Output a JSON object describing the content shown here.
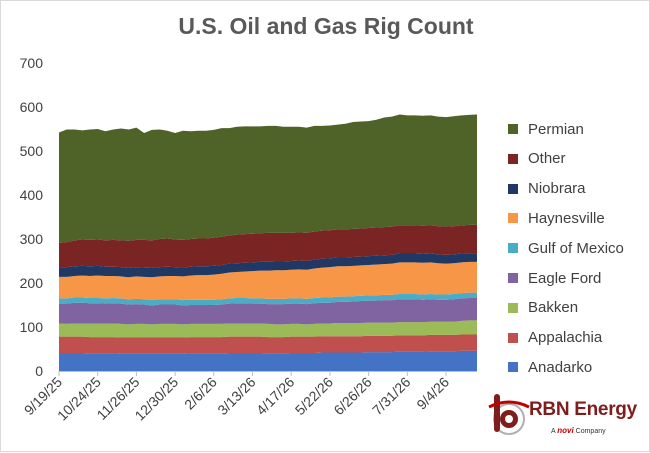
{
  "chart_data": {
    "type": "area",
    "stacked": true,
    "title": "U.S. Oil and Gas Rig Count",
    "xlabel": "",
    "ylabel": "",
    "ylim": [
      0,
      700
    ],
    "yticks": [
      0,
      100,
      200,
      300,
      400,
      500,
      600,
      700
    ],
    "grid": false,
    "legend_position": "right",
    "x_tick_labels": [
      "9/19/25",
      "10/24/25",
      "11/26/25",
      "12/30/25",
      "2/6/26",
      "3/13/26",
      "4/17/26",
      "5/22/26",
      "6/26/26",
      "7/31/26",
      "9/4/26"
    ],
    "x_tick_indices": [
      0,
      5,
      10,
      15,
      20,
      25,
      30,
      35,
      40,
      45,
      50
    ],
    "series": [
      {
        "name": "Anadarko",
        "color": "#4472c4",
        "values": [
          41,
          41,
          41,
          41,
          40,
          40,
          40,
          40,
          39,
          39,
          39,
          39,
          39,
          39,
          39,
          39,
          39,
          40,
          40,
          40,
          40,
          40,
          41,
          41,
          41,
          41,
          41,
          40,
          40,
          40,
          41,
          41,
          41,
          41,
          42,
          42,
          42,
          42,
          42,
          42,
          43,
          43,
          43,
          43,
          44,
          44,
          44,
          44,
          45,
          45,
          45,
          45,
          46,
          46,
          46
        ]
      },
      {
        "name": "Appalachia",
        "color": "#c0504d",
        "values": [
          37,
          37,
          37,
          37,
          37,
          37,
          37,
          37,
          37,
          37,
          37,
          37,
          37,
          37,
          37,
          37,
          37,
          37,
          37,
          37,
          37,
          37,
          37,
          37,
          37,
          37,
          37,
          37,
          37,
          37,
          37,
          37,
          37,
          37,
          37,
          37,
          37,
          37,
          37,
          37,
          37,
          37,
          37,
          37,
          37,
          37,
          37,
          37,
          37,
          37,
          37,
          37,
          37,
          37,
          37
        ]
      },
      {
        "name": "Bakken",
        "color": "#9bbb59",
        "values": [
          30,
          29,
          30,
          30,
          31,
          31,
          31,
          31,
          31,
          30,
          31,
          31,
          30,
          31,
          31,
          31,
          30,
          30,
          30,
          30,
          30,
          30,
          30,
          30,
          30,
          30,
          30,
          30,
          29,
          29,
          29,
          29,
          28,
          29,
          29,
          29,
          30,
          30,
          30,
          30,
          30,
          30,
          30,
          30,
          30,
          30,
          30,
          30,
          30,
          30,
          30,
          30,
          31,
          32,
          32
        ]
      },
      {
        "name": "Eagle Ford",
        "color": "#8064a2",
        "values": [
          45,
          46,
          47,
          47,
          46,
          46,
          45,
          46,
          46,
          45,
          45,
          44,
          43,
          44,
          44,
          44,
          43,
          43,
          43,
          43,
          43,
          44,
          45,
          46,
          46,
          45,
          45,
          45,
          46,
          46,
          46,
          46,
          46,
          47,
          47,
          47,
          48,
          48,
          49,
          50,
          50,
          50,
          51,
          51,
          52,
          52,
          52,
          51,
          51,
          50,
          50,
          51,
          51,
          51,
          51
        ]
      },
      {
        "name": "Gulf of Mexico",
        "color": "#4bacc6",
        "values": [
          12,
          12,
          12,
          12,
          12,
          12,
          12,
          12,
          12,
          12,
          12,
          12,
          12,
          12,
          12,
          12,
          12,
          12,
          12,
          12,
          12,
          12,
          12,
          12,
          12,
          12,
          12,
          12,
          12,
          12,
          12,
          12,
          12,
          12,
          12,
          12,
          12,
          12,
          12,
          12,
          12,
          12,
          12,
          12,
          12,
          12,
          12,
          12,
          12,
          12,
          12,
          12,
          12,
          12,
          12
        ]
      },
      {
        "name": "Haynesville",
        "color": "#f79646",
        "values": [
          49,
          49,
          49,
          50,
          50,
          51,
          51,
          50,
          50,
          50,
          51,
          51,
          52,
          52,
          53,
          53,
          54,
          55,
          56,
          56,
          57,
          58,
          59,
          59,
          60,
          62,
          63,
          64,
          65,
          65,
          65,
          66,
          66,
          67,
          68,
          69,
          69,
          69,
          69,
          69,
          69,
          70,
          70,
          71,
          72,
          72,
          72,
          72,
          72,
          71,
          70,
          70,
          70,
          70,
          70
        ]
      },
      {
        "name": "Niobrara",
        "color": "#1f3864",
        "values": [
          22,
          22,
          22,
          22,
          22,
          22,
          21,
          21,
          21,
          21,
          21,
          21,
          21,
          21,
          21,
          20,
          20,
          20,
          20,
          20,
          20,
          20,
          20,
          20,
          20,
          20,
          20,
          20,
          20,
          20,
          20,
          20,
          20,
          20,
          20,
          20,
          20,
          20,
          20,
          20,
          20,
          20,
          20,
          20,
          20,
          20,
          20,
          20,
          20,
          20,
          20,
          20,
          20,
          20,
          20
        ]
      },
      {
        "name": "Other",
        "color": "#7b2424",
        "values": [
          55,
          57,
          59,
          60,
          60,
          60,
          60,
          61,
          61,
          62,
          62,
          63,
          63,
          64,
          64,
          63,
          63,
          63,
          63,
          63,
          64,
          64,
          64,
          65,
          65,
          65,
          65,
          66,
          65,
          65,
          64,
          64,
          64,
          64,
          64,
          64,
          64,
          64,
          64,
          64,
          64,
          64,
          64,
          64,
          64,
          64,
          64,
          64,
          64,
          64,
          64,
          64,
          64,
          64,
          64
        ]
      },
      {
        "name": "Permian",
        "color": "#4f6228",
        "values": [
          251,
          256,
          252,
          248,
          251,
          251,
          248,
          251,
          254,
          253,
          255,
          243,
          251,
          249,
          245,
          242,
          248,
          245,
          245,
          245,
          245,
          247,
          244,
          245,
          245,
          244,
          243,
          243,
          243,
          241,
          241,
          240,
          239,
          240,
          238,
          238,
          238,
          240,
          243,
          243,
          243,
          245,
          249,
          250,
          252,
          250,
          250,
          250,
          250,
          249,
          249,
          250,
          250,
          250,
          251
        ]
      }
    ]
  },
  "logo": {
    "brand": "RBN Energy",
    "tagline_prefix": "A",
    "tagline_brand": "novi",
    "tagline_suffix": "Company"
  }
}
